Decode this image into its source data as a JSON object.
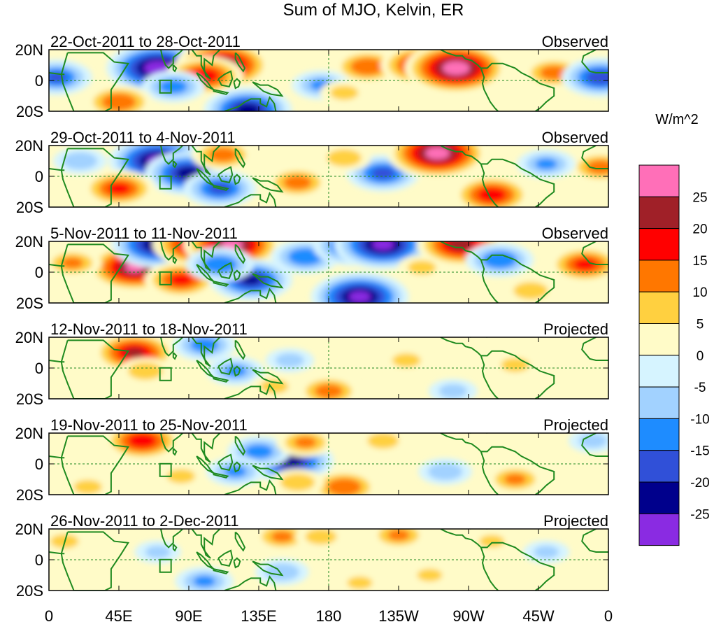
{
  "chart_data": {
    "type": "heatmap",
    "title": "Sum of MJO, Kelvin, ER",
    "units_label": "W/m^2",
    "x_ticks": [
      "0",
      "45E",
      "90E",
      "135E",
      "180",
      "135W",
      "90W",
      "45W",
      "0"
    ],
    "x_tick_lon": [
      0,
      45,
      90,
      135,
      180,
      225,
      270,
      315,
      360
    ],
    "x_range": [
      0,
      360
    ],
    "y_ticks": [
      "20N",
      "0",
      "20S"
    ],
    "y_tick_lat": [
      20,
      0,
      -20
    ],
    "y_range": [
      -20,
      20
    ],
    "colorbar": {
      "levels": [
        "25",
        "20",
        "15",
        "10",
        "5",
        "0",
        "-5",
        "-10",
        "-15",
        "-20",
        "-25"
      ],
      "colors": [
        "#ff6fb8",
        "#a02028",
        "#ff0000",
        "#ff7700",
        "#ffd040",
        "#fffbc8",
        "#d6f4ff",
        "#a2d2ff",
        "#1e8cff",
        "#3050d8",
        "#00008c",
        "#8a2be2"
      ]
    },
    "panels": [
      {
        "date_range": "22-Oct-2011 to 28-Oct-2011",
        "kind": "Observed",
        "blobs": [
          {
            "lon": 70,
            "lat": 8,
            "value": -28
          },
          {
            "lon": 112,
            "lat": 10,
            "value": 25
          },
          {
            "lon": 100,
            "lat": 3,
            "value": 18
          },
          {
            "lon": 128,
            "lat": -19,
            "value": -22
          },
          {
            "lon": 5,
            "lat": 2,
            "value": -15
          },
          {
            "lon": 205,
            "lat": 9,
            "value": 14
          },
          {
            "lon": 240,
            "lat": 10,
            "value": 20
          },
          {
            "lon": 262,
            "lat": 8,
            "value": 28
          },
          {
            "lon": 325,
            "lat": 5,
            "value": 12
          },
          {
            "lon": 355,
            "lat": 2,
            "value": -18
          },
          {
            "lon": 80,
            "lat": -4,
            "value": -12
          },
          {
            "lon": 45,
            "lat": -14,
            "value": 14
          },
          {
            "lon": 175,
            "lat": -3,
            "value": -10
          },
          {
            "lon": 190,
            "lat": -8,
            "value": 6
          }
        ]
      },
      {
        "date_range": "29-Oct-2011 to 4-Nov-2011",
        "kind": "Observed",
        "blobs": [
          {
            "lon": 70,
            "lat": 10,
            "value": -26
          },
          {
            "lon": 90,
            "lat": 2,
            "value": -22
          },
          {
            "lon": 110,
            "lat": -8,
            "value": -16
          },
          {
            "lon": 112,
            "lat": 14,
            "value": 12
          },
          {
            "lon": 160,
            "lat": -4,
            "value": 12
          },
          {
            "lon": 215,
            "lat": 2,
            "value": -16
          },
          {
            "lon": 250,
            "lat": 15,
            "value": 27
          },
          {
            "lon": 285,
            "lat": -12,
            "value": 18
          },
          {
            "lon": 45,
            "lat": -8,
            "value": 16
          },
          {
            "lon": 355,
            "lat": 6,
            "value": 12
          },
          {
            "lon": 20,
            "lat": 10,
            "value": -8
          },
          {
            "lon": 190,
            "lat": 12,
            "value": 8
          },
          {
            "lon": 320,
            "lat": 8,
            "value": -10
          }
        ]
      },
      {
        "date_range": "5-Nov-2011 to 11-Nov-2011",
        "kind": "Observed",
        "blobs": [
          {
            "lon": 55,
            "lat": 3,
            "value": 25
          },
          {
            "lon": 70,
            "lat": 18,
            "value": -24
          },
          {
            "lon": 95,
            "lat": 18,
            "value": 22
          },
          {
            "lon": 118,
            "lat": 18,
            "value": 26
          },
          {
            "lon": 85,
            "lat": -5,
            "value": 16
          },
          {
            "lon": 130,
            "lat": -5,
            "value": -20
          },
          {
            "lon": 110,
            "lat": 5,
            "value": -14
          },
          {
            "lon": 165,
            "lat": 10,
            "value": -14
          },
          {
            "lon": 195,
            "lat": 17,
            "value": -18
          },
          {
            "lon": 215,
            "lat": 18,
            "value": -26
          },
          {
            "lon": 200,
            "lat": -16,
            "value": -26
          },
          {
            "lon": 265,
            "lat": 18,
            "value": 22
          },
          {
            "lon": 290,
            "lat": 8,
            "value": -14
          },
          {
            "lon": 345,
            "lat": 5,
            "value": 16
          },
          {
            "lon": 15,
            "lat": 6,
            "value": 10
          },
          {
            "lon": 240,
            "lat": 3,
            "value": 6
          },
          {
            "lon": 310,
            "lat": -12,
            "value": 8
          }
        ]
      },
      {
        "date_range": "12-Nov-2011 to 18-Nov-2011",
        "kind": "Projected",
        "blobs": [
          {
            "lon": 55,
            "lat": 10,
            "value": 20
          },
          {
            "lon": 62,
            "lat": -2,
            "value": 8
          },
          {
            "lon": 100,
            "lat": 15,
            "value": -12
          },
          {
            "lon": 120,
            "lat": -2,
            "value": -10
          },
          {
            "lon": 155,
            "lat": 5,
            "value": -6
          },
          {
            "lon": 180,
            "lat": -15,
            "value": 12
          },
          {
            "lon": 145,
            "lat": -12,
            "value": 6
          },
          {
            "lon": 230,
            "lat": 5,
            "value": 6
          },
          {
            "lon": 260,
            "lat": -15,
            "value": -6
          },
          {
            "lon": 300,
            "lat": 2,
            "value": 6
          },
          {
            "lon": 15,
            "lat": -5,
            "value": 4
          }
        ]
      },
      {
        "date_range": "19-Nov-2011 to 25-Nov-2011",
        "kind": "Projected",
        "blobs": [
          {
            "lon": 60,
            "lat": 15,
            "value": 18
          },
          {
            "lon": 155,
            "lat": 2,
            "value": -22
          },
          {
            "lon": 135,
            "lat": 8,
            "value": -12
          },
          {
            "lon": 120,
            "lat": -5,
            "value": -10
          },
          {
            "lon": 190,
            "lat": -15,
            "value": 14
          },
          {
            "lon": 160,
            "lat": -12,
            "value": 8
          },
          {
            "lon": 165,
            "lat": 14,
            "value": 10
          },
          {
            "lon": 215,
            "lat": 15,
            "value": 7
          },
          {
            "lon": 255,
            "lat": -5,
            "value": -8
          },
          {
            "lon": 300,
            "lat": -10,
            "value": 10
          },
          {
            "lon": 25,
            "lat": -15,
            "value": 6
          },
          {
            "lon": 85,
            "lat": -8,
            "value": 6
          },
          {
            "lon": 350,
            "lat": 15,
            "value": -6
          }
        ]
      },
      {
        "date_range": "26-Nov-2011 to 2-Dec-2011",
        "kind": "Projected",
        "blobs": [
          {
            "lon": 150,
            "lat": 15,
            "value": 10
          },
          {
            "lon": 175,
            "lat": 15,
            "value": 7
          },
          {
            "lon": 225,
            "lat": 16,
            "value": 10
          },
          {
            "lon": 100,
            "lat": -14,
            "value": -10
          },
          {
            "lon": 150,
            "lat": -8,
            "value": -8
          },
          {
            "lon": 70,
            "lat": 5,
            "value": -5
          },
          {
            "lon": 245,
            "lat": -10,
            "value": 5
          },
          {
            "lon": 285,
            "lat": 12,
            "value": 5
          },
          {
            "lon": 320,
            "lat": 5,
            "value": -5
          },
          {
            "lon": 10,
            "lat": 12,
            "value": 6
          },
          {
            "lon": 200,
            "lat": -15,
            "value": 5
          }
        ]
      }
    ]
  }
}
